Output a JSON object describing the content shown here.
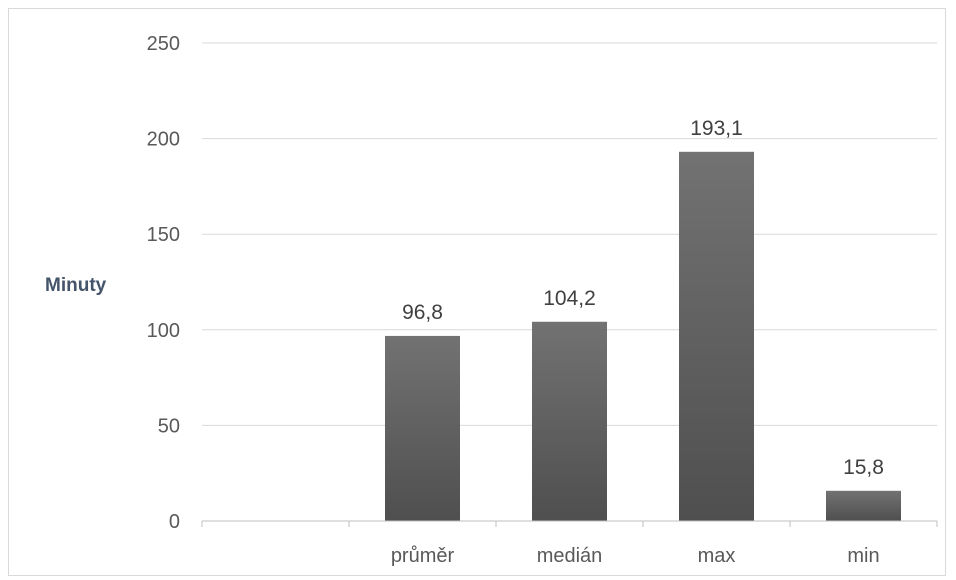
{
  "chart_data": {
    "type": "bar",
    "categories": [
      "",
      "průměr",
      "medián",
      "max",
      "min"
    ],
    "values": [
      null,
      96.8,
      104.2,
      193.1,
      15.8
    ],
    "value_labels": [
      "",
      "96,8",
      "104,2",
      "193,1",
      "15,8"
    ],
    "ylabel": "Minuty",
    "ylim": [
      0,
      250
    ],
    "yticks": [
      0,
      50,
      100,
      150,
      200,
      250
    ],
    "grid": true,
    "bar_color": "#636363"
  }
}
